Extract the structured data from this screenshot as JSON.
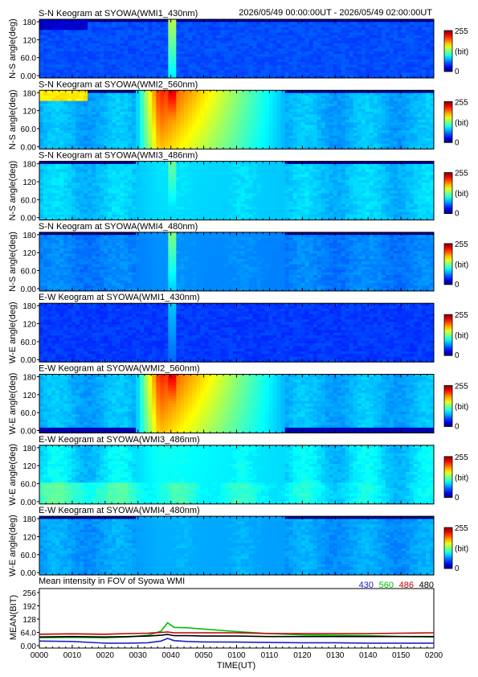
{
  "header": {
    "time_range": "2026/05/49 00:00:00UT - 2026/05/49 02:00:00UT"
  },
  "colorbar": {
    "max_label": "255",
    "unit_label": "(bit)",
    "min_label": "0"
  },
  "panels": [
    {
      "title": "S-N Keogram at SYOWA(WMI1_430nm)",
      "ylabel": "N-S angle(deg)",
      "yticks": [
        "180",
        "120",
        "60.0",
        "0.00"
      ],
      "base": 0.2,
      "flat": 0.0,
      "arc": 0.05,
      "brightening": 0.45,
      "green_tail": 0.0,
      "edge": "top"
    },
    {
      "title": "S-N Keogram at SYOWA(WMI2_560nm)",
      "ylabel": "N-S angle(deg)",
      "yticks": [
        "180",
        "120",
        "60.0",
        "0.00"
      ],
      "base": 0.3,
      "flat": 0.05,
      "arc": 0.62,
      "brightening": 0.8,
      "green_tail": 0.55,
      "edge": "top"
    },
    {
      "title": "S-N Keogram at SYOWA(WMI3_486nm)",
      "ylabel": "N-S angle(deg)",
      "yticks": [
        "180",
        "120",
        "60.0",
        "0.00"
      ],
      "base": 0.32,
      "flat": 0.05,
      "arc": 0.0,
      "brightening": 0.38,
      "green_tail": 0.03,
      "edge": "top"
    },
    {
      "title": "S-N Keogram at SYOWA(WMI4_480nm)",
      "ylabel": "N-S angle(deg)",
      "yticks": [
        "180",
        "120",
        "60.0",
        "0.00"
      ],
      "base": 0.25,
      "flat": 0.03,
      "arc": 0.0,
      "brightening": 0.4,
      "green_tail": 0.02,
      "edge": "top"
    },
    {
      "title": "E-W Keogram at SYOWA(WMI1_430nm)",
      "ylabel": "W-E angle(deg)",
      "yticks": [
        "180",
        "120",
        "60.0",
        "0.00"
      ],
      "base": 0.18,
      "flat": 0.0,
      "arc": 0.0,
      "brightening": 0.22,
      "green_tail": 0.0,
      "edge": "none"
    },
    {
      "title": "E-W Keogram at SYOWA(WMI2_560nm)",
      "ylabel": "W-E angle(deg)",
      "yticks": [
        "180",
        "120",
        "60.0",
        "0.00"
      ],
      "base": 0.3,
      "flat": 0.05,
      "arc": 0.0,
      "brightening": 0.8,
      "green_tail": 0.55,
      "edge": "bottom"
    },
    {
      "title": "E-W Keogram at SYOWA(WMI3_486nm)",
      "ylabel": "W-E angle(deg)",
      "yticks": [
        "180",
        "120",
        "60.0",
        "0.00"
      ],
      "base": 0.34,
      "flat": 0.08,
      "arc": 0.0,
      "brightening": 0.2,
      "green_tail": 0.05,
      "edge": "low"
    },
    {
      "title": "E-W Keogram at SYOWA(WMI4_480nm)",
      "ylabel": "W-E angle(deg)",
      "yticks": [
        "180",
        "120",
        "60.0",
        "0.00"
      ],
      "base": 0.28,
      "flat": 0.04,
      "arc": 0.0,
      "brightening": 0.2,
      "green_tail": 0.02,
      "edge": "top"
    }
  ],
  "chart_data": {
    "type": "line",
    "title": "Mean intensity in FOV of Syowa WMI",
    "xlabel": "TIME(UT)",
    "ylabel": "MEAN(BIT)",
    "x_ticks": [
      "0000",
      "0010",
      "0020",
      "0030",
      "0040",
      "0050",
      "0100",
      "0110",
      "0120",
      "0130",
      "0140",
      "0150",
      "0200"
    ],
    "y_ticks": [
      "256",
      "192",
      "128",
      "64.0",
      "0.00"
    ],
    "xlim": [
      0,
      120
    ],
    "ylim": [
      0,
      256
    ],
    "x_minutes": [
      0,
      10,
      20,
      27,
      33,
      37,
      39,
      41,
      45,
      50,
      60,
      70,
      80,
      90,
      100,
      110,
      120
    ],
    "series": [
      {
        "name": "430",
        "color": "#2020c0",
        "values": [
          22,
          20,
          12,
          12,
          14,
          22,
          35,
          24,
          20,
          18,
          17,
          15,
          14,
          14,
          12,
          12,
          12
        ]
      },
      {
        "name": "560",
        "color": "#00c000",
        "values": [
          38,
          40,
          38,
          42,
          50,
          70,
          110,
          88,
          86,
          80,
          68,
          58,
          52,
          50,
          48,
          44,
          42
        ]
      },
      {
        "name": "486",
        "color": "#c00000",
        "values": [
          55,
          57,
          55,
          58,
          60,
          64,
          66,
          62,
          62,
          62,
          62,
          58,
          58,
          58,
          58,
          60,
          62
        ]
      },
      {
        "name": "480",
        "color": "#000000",
        "values": [
          42,
          44,
          42,
          44,
          46,
          50,
          54,
          48,
          48,
          46,
          46,
          44,
          44,
          44,
          44,
          44,
          44
        ]
      }
    ]
  }
}
